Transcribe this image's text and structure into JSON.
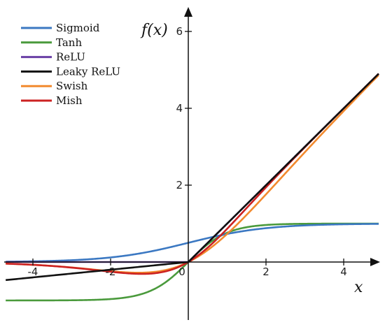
{
  "chart_data": {
    "type": "line",
    "title": "",
    "xlabel": "x",
    "ylabel": "f(x)",
    "xlim": [
      -4.7,
      4.9
    ],
    "ylim": [
      -1.5,
      6.4
    ],
    "xticks": [
      -4,
      -2,
      0,
      2,
      4
    ],
    "yticks": [
      2,
      4,
      6
    ],
    "x_tick_labels": [
      "-4",
      "-2",
      "0",
      "2",
      "4"
    ],
    "y_tick_labels": [
      "2",
      "4",
      "6"
    ],
    "grid": false,
    "legend_position": "top-left",
    "series": [
      {
        "name": "Sigmoid",
        "function": "sigmoid",
        "color": "#3b78c2"
      },
      {
        "name": "Tanh",
        "function": "tanh",
        "color": "#4a9a3c"
      },
      {
        "name": "ReLU",
        "function": "relu",
        "color": "#6a3fa6"
      },
      {
        "name": "Leaky ReLU",
        "function": "leaky_relu",
        "alpha": 0.1,
        "color": "#111111"
      },
      {
        "name": "Swish",
        "function": "swish",
        "color": "#f28a2e"
      },
      {
        "name": "Mish",
        "function": "mish",
        "color": "#cc2222"
      }
    ]
  }
}
